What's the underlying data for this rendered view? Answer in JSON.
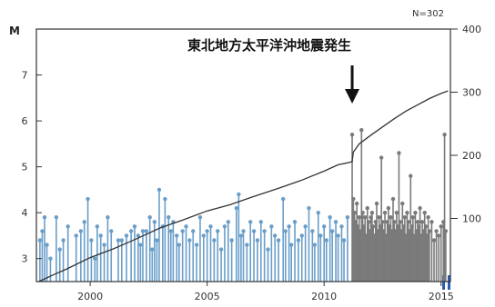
{
  "chart_data": {
    "type": "bar",
    "count_label": "N=302",
    "left_axis_unit": "M",
    "left_ylim": [
      2.5,
      8.0
    ],
    "left_ticks": [
      "3",
      "4",
      "5",
      "6",
      "7"
    ],
    "right_ylim": [
      0,
      400
    ],
    "right_ticks": [
      "100",
      "200",
      "300",
      "400"
    ],
    "xlim": [
      1997.7,
      2015.4
    ],
    "x_ticks": [
      "2000",
      "2005",
      "2010",
      "2015"
    ],
    "annotation": "東北地方太平洋沖地震発生",
    "annotation_x": 2011.2,
    "event_year": 2011.2,
    "colors": {
      "before": "#6a9ec8",
      "after": "#7a7a7a",
      "cumulative": "#333333",
      "arrow": "#111111",
      "marker": "#2a5db0"
    },
    "series": [
      {
        "kind": "magnitude_stems",
        "events": [
          [
            1997.85,
            3.4
          ],
          [
            1997.95,
            3.6
          ],
          [
            1998.05,
            3.9
          ],
          [
            1998.15,
            3.3
          ],
          [
            1998.3,
            3.0
          ],
          [
            1998.55,
            3.9
          ],
          [
            1998.7,
            3.2
          ],
          [
            1998.85,
            3.4
          ],
          [
            1999.05,
            3.7
          ],
          [
            1999.4,
            3.5
          ],
          [
            1999.6,
            3.6
          ],
          [
            1999.75,
            3.8
          ],
          [
            1999.9,
            4.3
          ],
          [
            2000.05,
            3.4
          ],
          [
            2000.2,
            3.0
          ],
          [
            2000.3,
            3.7
          ],
          [
            2000.45,
            3.5
          ],
          [
            2000.6,
            3.3
          ],
          [
            2000.75,
            3.9
          ],
          [
            2000.9,
            3.6
          ],
          [
            2001.2,
            3.4
          ],
          [
            2001.35,
            3.4
          ],
          [
            2001.55,
            3.5
          ],
          [
            2001.75,
            3.6
          ],
          [
            2001.9,
            3.7
          ],
          [
            2002.05,
            3.5
          ],
          [
            2002.15,
            3.3
          ],
          [
            2002.25,
            3.6
          ],
          [
            2002.4,
            3.6
          ],
          [
            2002.55,
            3.9
          ],
          [
            2002.65,
            3.2
          ],
          [
            2002.75,
            3.8
          ],
          [
            2002.85,
            3.4
          ],
          [
            2002.95,
            4.5
          ],
          [
            2003.1,
            3.7
          ],
          [
            2003.2,
            4.3
          ],
          [
            2003.35,
            3.9
          ],
          [
            2003.45,
            3.6
          ],
          [
            2003.55,
            3.8
          ],
          [
            2003.7,
            3.5
          ],
          [
            2003.8,
            3.3
          ],
          [
            2003.95,
            3.6
          ],
          [
            2004.1,
            3.7
          ],
          [
            2004.25,
            3.4
          ],
          [
            2004.4,
            3.6
          ],
          [
            2004.55,
            3.3
          ],
          [
            2004.7,
            3.9
          ],
          [
            2004.85,
            3.5
          ],
          [
            2005.0,
            3.6
          ],
          [
            2005.15,
            3.7
          ],
          [
            2005.3,
            3.4
          ],
          [
            2005.45,
            3.6
          ],
          [
            2005.6,
            3.2
          ],
          [
            2005.75,
            3.7
          ],
          [
            2005.9,
            3.8
          ],
          [
            2006.05,
            3.4
          ],
          [
            2006.25,
            4.1
          ],
          [
            2006.35,
            4.4
          ],
          [
            2006.45,
            3.5
          ],
          [
            2006.55,
            3.6
          ],
          [
            2006.7,
            3.3
          ],
          [
            2006.85,
            3.8
          ],
          [
            2007.0,
            3.6
          ],
          [
            2007.15,
            3.4
          ],
          [
            2007.3,
            3.8
          ],
          [
            2007.45,
            3.6
          ],
          [
            2007.6,
            3.2
          ],
          [
            2007.75,
            3.7
          ],
          [
            2007.9,
            3.5
          ],
          [
            2008.05,
            3.4
          ],
          [
            2008.25,
            4.3
          ],
          [
            2008.35,
            3.6
          ],
          [
            2008.5,
            3.7
          ],
          [
            2008.6,
            3.3
          ],
          [
            2008.75,
            3.8
          ],
          [
            2008.9,
            3.4
          ],
          [
            2009.05,
            3.5
          ],
          [
            2009.2,
            3.7
          ],
          [
            2009.35,
            4.1
          ],
          [
            2009.5,
            3.6
          ],
          [
            2009.6,
            3.3
          ],
          [
            2009.75,
            4.0
          ],
          [
            2009.85,
            3.5
          ],
          [
            2010.0,
            3.7
          ],
          [
            2010.1,
            3.4
          ],
          [
            2010.25,
            3.9
          ],
          [
            2010.35,
            3.6
          ],
          [
            2010.5,
            3.8
          ],
          [
            2010.6,
            3.5
          ],
          [
            2010.75,
            3.7
          ],
          [
            2010.85,
            3.4
          ],
          [
            2011.0,
            3.9
          ],
          [
            2011.2,
            5.7
          ],
          [
            2011.25,
            4.3
          ],
          [
            2011.3,
            4.0
          ],
          [
            2011.35,
            3.8
          ],
          [
            2011.4,
            4.2
          ],
          [
            2011.45,
            3.7
          ],
          [
            2011.5,
            3.9
          ],
          [
            2011.55,
            3.6
          ],
          [
            2011.6,
            5.8
          ],
          [
            2011.65,
            4.0
          ],
          [
            2011.7,
            3.7
          ],
          [
            2011.75,
            3.9
          ],
          [
            2011.8,
            3.5
          ],
          [
            2011.85,
            4.1
          ],
          [
            2011.9,
            3.8
          ],
          [
            2011.95,
            3.6
          ],
          [
            2012.0,
            3.9
          ],
          [
            2012.05,
            4.0
          ],
          [
            2012.1,
            3.7
          ],
          [
            2012.15,
            3.5
          ],
          [
            2012.2,
            3.8
          ],
          [
            2012.25,
            4.2
          ],
          [
            2012.3,
            3.6
          ],
          [
            2012.35,
            3.9
          ],
          [
            2012.4,
            3.7
          ],
          [
            2012.45,
            5.2
          ],
          [
            2012.5,
            3.8
          ],
          [
            2012.55,
            3.6
          ],
          [
            2012.6,
            4.0
          ],
          [
            2012.65,
            3.5
          ],
          [
            2012.7,
            3.8
          ],
          [
            2012.75,
            4.1
          ],
          [
            2012.8,
            3.7
          ],
          [
            2012.85,
            3.9
          ],
          [
            2012.9,
            3.6
          ],
          [
            2012.95,
            4.3
          ],
          [
            2013.0,
            3.8
          ],
          [
            2013.05,
            3.6
          ],
          [
            2013.1,
            4.0
          ],
          [
            2013.15,
            3.7
          ],
          [
            2013.2,
            5.3
          ],
          [
            2013.25,
            3.8
          ],
          [
            2013.3,
            3.6
          ],
          [
            2013.35,
            4.2
          ],
          [
            2013.4,
            3.7
          ],
          [
            2013.45,
            3.9
          ],
          [
            2013.5,
            3.5
          ],
          [
            2013.55,
            4.0
          ],
          [
            2013.6,
            3.8
          ],
          [
            2013.65,
            3.6
          ],
          [
            2013.7,
            4.8
          ],
          [
            2013.75,
            3.7
          ],
          [
            2013.8,
            3.9
          ],
          [
            2013.85,
            3.5
          ],
          [
            2013.9,
            4.0
          ],
          [
            2013.95,
            3.6
          ],
          [
            2014.0,
            3.8
          ],
          [
            2014.05,
            3.7
          ],
          [
            2014.1,
            4.1
          ],
          [
            2014.15,
            3.5
          ],
          [
            2014.2,
            3.8
          ],
          [
            2014.25,
            3.6
          ],
          [
            2014.3,
            4.0
          ],
          [
            2014.35,
            3.7
          ],
          [
            2014.4,
            3.5
          ],
          [
            2014.45,
            3.9
          ],
          [
            2014.5,
            3.6
          ],
          [
            2014.6,
            3.8
          ],
          [
            2014.7,
            3.4
          ],
          [
            2014.8,
            3.6
          ],
          [
            2014.9,
            3.5
          ],
          [
            2015.0,
            3.7
          ],
          [
            2015.1,
            3.8
          ],
          [
            2015.15,
            5.7
          ],
          [
            2015.2,
            3.6
          ]
        ]
      },
      {
        "kind": "cumulative_count",
        "points": [
          [
            1997.8,
            0
          ],
          [
            1998.5,
            12
          ],
          [
            1999.0,
            20
          ],
          [
            2000.0,
            38
          ],
          [
            2001.0,
            52
          ],
          [
            2002.0,
            68
          ],
          [
            2003.0,
            85
          ],
          [
            2004.0,
            98
          ],
          [
            2005.0,
            112
          ],
          [
            2006.0,
            122
          ],
          [
            2007.0,
            135
          ],
          [
            2008.0,
            147
          ],
          [
            2009.0,
            160
          ],
          [
            2010.0,
            175
          ],
          [
            2010.6,
            185
          ],
          [
            2011.0,
            188
          ],
          [
            2011.2,
            190
          ],
          [
            2011.25,
            205
          ],
          [
            2011.5,
            218
          ],
          [
            2012.0,
            232
          ],
          [
            2012.5,
            245
          ],
          [
            2013.0,
            258
          ],
          [
            2013.5,
            270
          ],
          [
            2014.0,
            280
          ],
          [
            2014.5,
            290
          ],
          [
            2015.0,
            298
          ],
          [
            2015.3,
            302
          ]
        ]
      }
    ]
  }
}
